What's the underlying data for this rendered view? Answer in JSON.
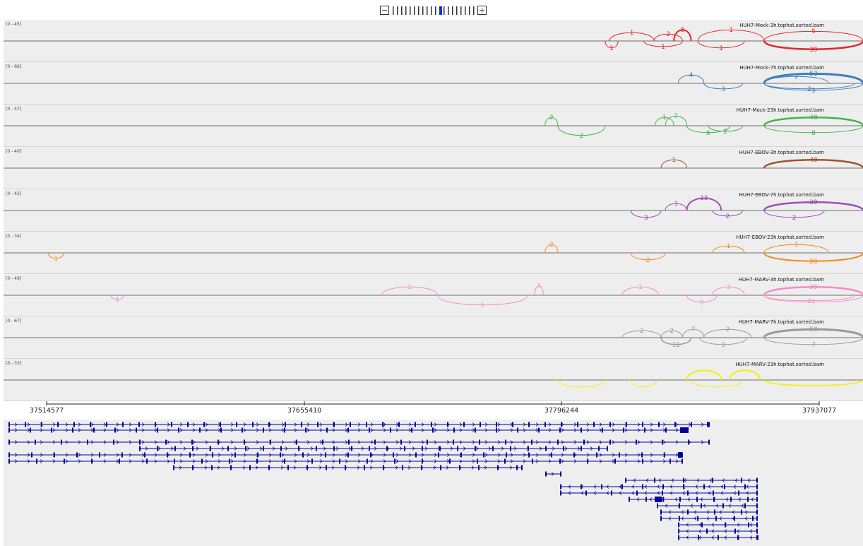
{
  "zoom": {
    "minus_label": "−",
    "plus_label": "+",
    "level": 11,
    "levels": 20
  },
  "colors": {
    "panel_bg": "#eeeeee",
    "separator": "#d4d4d4",
    "baseline": "#888888",
    "gene": "#00009b"
  },
  "tracks": [
    {
      "range": "[0 - 45]",
      "name": "HUH7-Mock-3h.tophat.sorted.bam",
      "color": "#e0282e",
      "arcs": [
        {
          "s": 0.705,
          "e": 0.757,
          "up": true,
          "h": 12,
          "lbl": "1",
          "w": 1
        },
        {
          "s": 0.757,
          "e": 0.79,
          "up": true,
          "h": 10,
          "lbl": "2",
          "w": 1
        },
        {
          "s": 0.78,
          "e": 0.8,
          "up": true,
          "h": 16,
          "lbl": "8",
          "w": 2
        },
        {
          "s": 0.808,
          "e": 0.885,
          "up": true,
          "h": 16,
          "lbl": "1",
          "w": 1
        },
        {
          "s": 0.885,
          "e": 1.0,
          "up": true,
          "h": 14,
          "lbl": "5",
          "w": 1
        },
        {
          "s": 0.885,
          "e": 1.0,
          "up": false,
          "h": 12,
          "lbl": "39",
          "w": 2.5
        },
        {
          "s": 0.808,
          "e": 0.862,
          "up": false,
          "h": 10,
          "lbl": "1",
          "w": 1
        },
        {
          "s": 0.745,
          "e": 0.79,
          "up": false,
          "h": 8,
          "lbl": "1",
          "w": 1
        },
        {
          "s": 0.7,
          "e": 0.715,
          "up": false,
          "h": 10,
          "lbl": "1",
          "w": 1
        }
      ]
    },
    {
      "range": "[0 - 66]",
      "name": "HUH7-Mock-7h.tophat.sorted.bam",
      "color": "#3a7fc0",
      "arcs": [
        {
          "s": 0.785,
          "e": 0.815,
          "up": true,
          "h": 12,
          "lbl": "4",
          "w": 1
        },
        {
          "s": 0.885,
          "e": 1.0,
          "up": true,
          "h": 14,
          "lbl": "53",
          "w": 3
        },
        {
          "s": 0.885,
          "e": 0.96,
          "up": true,
          "h": 10,
          "lbl": "2",
          "w": 1
        },
        {
          "s": 0.885,
          "e": 1.0,
          "up": false,
          "h": 10,
          "lbl": "9",
          "w": 1
        },
        {
          "s": 0.885,
          "e": 0.99,
          "up": false,
          "h": 8,
          "lbl": "2",
          "w": 1
        },
        {
          "s": 0.815,
          "e": 0.86,
          "up": false,
          "h": 8,
          "lbl": "3",
          "w": 1
        }
      ]
    },
    {
      "range": "[0 - 57]",
      "name": "HUH7-Mock-23h.tophat.sorted.bam",
      "color": "#3fb44a",
      "arcs": [
        {
          "s": 0.63,
          "e": 0.645,
          "up": true,
          "h": 12,
          "lbl": "2",
          "w": 1
        },
        {
          "s": 0.645,
          "e": 0.7,
          "up": false,
          "h": 14,
          "lbl": "2",
          "w": 1
        },
        {
          "s": 0.758,
          "e": 0.78,
          "up": true,
          "h": 12,
          "lbl": "1",
          "w": 1
        },
        {
          "s": 0.77,
          "e": 0.795,
          "up": true,
          "h": 14,
          "lbl": "7",
          "w": 1
        },
        {
          "s": 0.795,
          "e": 0.845,
          "up": false,
          "h": 10,
          "lbl": "6",
          "w": 1
        },
        {
          "s": 0.82,
          "e": 0.86,
          "up": false,
          "h": 8,
          "lbl": "2",
          "w": 1
        },
        {
          "s": 0.885,
          "e": 1.0,
          "up": true,
          "h": 12,
          "lbl": "48",
          "w": 2.5
        },
        {
          "s": 0.885,
          "e": 1.0,
          "up": false,
          "h": 10,
          "lbl": "8",
          "w": 1
        }
      ]
    },
    {
      "range": "[0 - 40]",
      "name": "HUH7-EBOV-3h.tophat.sorted.bam",
      "color": "#a0522d",
      "arcs": [
        {
          "s": 0.765,
          "e": 0.795,
          "up": true,
          "h": 12,
          "lbl": "1",
          "w": 1
        },
        {
          "s": 0.885,
          "e": 1.0,
          "up": true,
          "h": 12,
          "lbl": "40",
          "w": 2.5
        }
      ]
    },
    {
      "range": "[0 - 42]",
      "name": "HUH7-EBOV-7h.tophat.sorted.bam",
      "color": "#9a4fb5",
      "arcs": [
        {
          "s": 0.73,
          "e": 0.765,
          "up": false,
          "h": 10,
          "lbl": "3",
          "w": 1
        },
        {
          "s": 0.77,
          "e": 0.795,
          "up": true,
          "h": 10,
          "lbl": "1",
          "w": 1
        },
        {
          "s": 0.795,
          "e": 0.835,
          "up": true,
          "h": 18,
          "lbl": "13",
          "w": 2
        },
        {
          "s": 0.825,
          "e": 0.86,
          "up": false,
          "h": 8,
          "lbl": "2",
          "w": 1
        },
        {
          "s": 0.885,
          "e": 1.0,
          "up": true,
          "h": 12,
          "lbl": "39",
          "w": 2.5
        },
        {
          "s": 0.885,
          "e": 0.955,
          "up": false,
          "h": 10,
          "lbl": "2",
          "w": 1
        }
      ]
    },
    {
      "range": "[0 - 34]",
      "name": "HUH7-EBOV-23h.tophat.sorted.bam",
      "color": "#f28a1e",
      "arcs": [
        {
          "s": 0.052,
          "e": 0.07,
          "up": false,
          "h": 8,
          "lbl": "1",
          "w": 1
        },
        {
          "s": 0.63,
          "e": 0.645,
          "up": true,
          "h": 12,
          "lbl": "2",
          "w": 1
        },
        {
          "s": 0.73,
          "e": 0.77,
          "up": false,
          "h": 10,
          "lbl": "2",
          "w": 1
        },
        {
          "s": 0.825,
          "e": 0.862,
          "up": true,
          "h": 10,
          "lbl": "1",
          "w": 1
        },
        {
          "s": 0.885,
          "e": 0.96,
          "up": true,
          "h": 12,
          "lbl": "1",
          "w": 1
        },
        {
          "s": 0.885,
          "e": 1.0,
          "up": false,
          "h": 12,
          "lbl": "20",
          "w": 2
        }
      ]
    },
    {
      "range": "[0 - 49]",
      "name": "HUH7-MARV-3h.tophat.sorted.bam",
      "color": "#f58cc0",
      "arcs": [
        {
          "s": 0.125,
          "e": 0.14,
          "up": false,
          "h": 6,
          "lbl": "1",
          "w": 1
        },
        {
          "s": 0.44,
          "e": 0.505,
          "up": true,
          "h": 12,
          "lbl": "1",
          "w": 1
        },
        {
          "s": 0.505,
          "e": 0.61,
          "up": false,
          "h": 14,
          "lbl": "1",
          "w": 1
        },
        {
          "s": 0.618,
          "e": 0.628,
          "up": true,
          "h": 14,
          "lbl": "1",
          "w": 1
        },
        {
          "s": 0.72,
          "e": 0.762,
          "up": true,
          "h": 12,
          "lbl": "1",
          "w": 1
        },
        {
          "s": 0.795,
          "e": 0.83,
          "up": false,
          "h": 10,
          "lbl": "6",
          "w": 1
        },
        {
          "s": 0.825,
          "e": 0.862,
          "up": true,
          "h": 12,
          "lbl": "3",
          "w": 1
        },
        {
          "s": 0.885,
          "e": 1.0,
          "up": true,
          "h": 12,
          "lbl": "39",
          "w": 2.5
        },
        {
          "s": 0.885,
          "e": 0.99,
          "up": false,
          "h": 8,
          "lbl": "3",
          "w": 1
        },
        {
          "s": 0.885,
          "e": 1.0,
          "up": false,
          "h": 10,
          "lbl": "7",
          "w": 1
        }
      ]
    },
    {
      "range": "[0 - 67]",
      "name": "HUH7-MARV-7h.tophat.sorted.bam",
      "color": "#999999",
      "arcs": [
        {
          "s": 0.72,
          "e": 0.765,
          "up": true,
          "h": 10,
          "lbl": "2",
          "w": 1
        },
        {
          "s": 0.765,
          "e": 0.79,
          "up": true,
          "h": 10,
          "lbl": "2",
          "w": 1
        },
        {
          "s": 0.79,
          "e": 0.815,
          "up": true,
          "h": 12,
          "lbl": "7",
          "w": 1
        },
        {
          "s": 0.815,
          "e": 0.87,
          "up": true,
          "h": 12,
          "lbl": "2",
          "w": 1
        },
        {
          "s": 0.765,
          "e": 0.8,
          "up": false,
          "h": 10,
          "lbl": "31",
          "w": 1.5
        },
        {
          "s": 0.81,
          "e": 0.865,
          "up": false,
          "h": 10,
          "lbl": "9",
          "w": 1
        },
        {
          "s": 0.885,
          "e": 1.0,
          "up": true,
          "h": 12,
          "lbl": "58",
          "w": 3
        },
        {
          "s": 0.885,
          "e": 1.0,
          "up": false,
          "h": 10,
          "lbl": "7",
          "w": 1
        }
      ]
    },
    {
      "range": "[0 - 33]",
      "name": "HUH7-MARV-23h.tophat.sorted.bam",
      "color": "#f4f000",
      "arcs": [
        {
          "s": 0.645,
          "e": 0.7,
          "up": false,
          "h": 10,
          "lbl": "",
          "w": 1
        },
        {
          "s": 0.73,
          "e": 0.76,
          "up": false,
          "h": 10,
          "lbl": "",
          "w": 1
        },
        {
          "s": 0.795,
          "e": 0.835,
          "up": true,
          "h": 14,
          "lbl": "",
          "w": 2
        },
        {
          "s": 0.845,
          "e": 0.88,
          "up": true,
          "h": 14,
          "lbl": "",
          "w": 2
        },
        {
          "s": 0.8,
          "e": 0.86,
          "up": false,
          "h": 10,
          "lbl": "",
          "w": 1
        },
        {
          "s": 0.885,
          "e": 1.0,
          "up": false,
          "h": 8,
          "lbl": "",
          "w": 1.5
        }
      ]
    }
  ],
  "ruler": {
    "ticks": [
      "37514577",
      "37655410",
      "37796244",
      "37937077"
    ]
  }
}
